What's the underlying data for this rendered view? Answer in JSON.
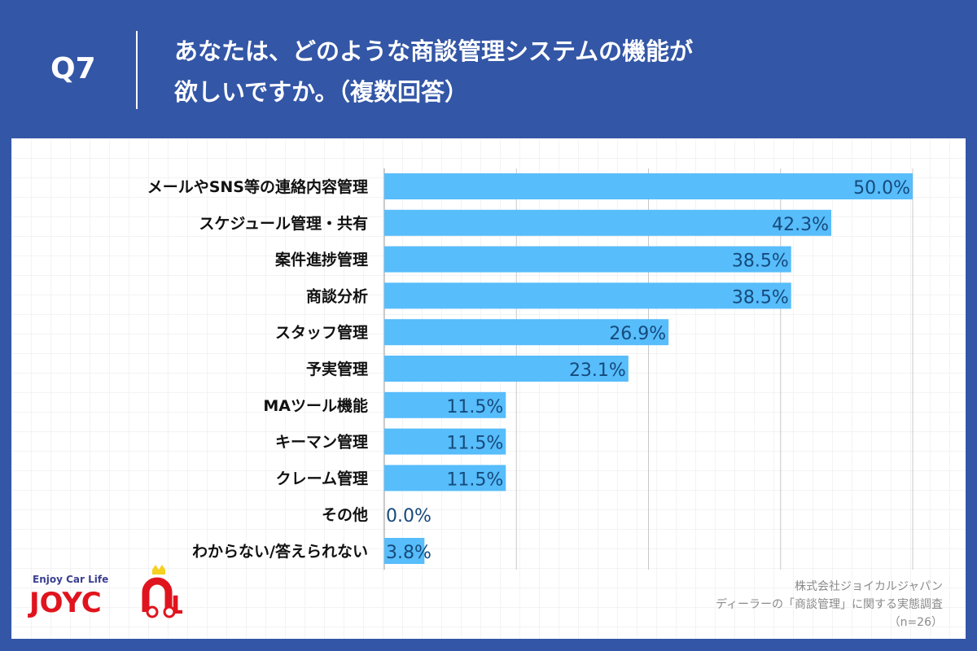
{
  "header": {
    "question_no": "Q7",
    "title_line1": "あなたは、どのような商談管理システムの機能が",
    "title_line2": "欲しいですか。（複数回答）"
  },
  "chart_data": {
    "type": "bar",
    "orientation": "horizontal",
    "categories": [
      "メールやSNS等の連絡内容管理",
      "スケジュール管理・共有",
      "案件進捗管理",
      "商談分析",
      "スタッフ管理",
      "予実管理",
      "MAツール機能",
      "キーマン管理",
      "クレーム管理",
      "その他",
      "わからない/答えられない"
    ],
    "values": [
      50.0,
      42.3,
      38.5,
      38.5,
      26.9,
      23.1,
      11.5,
      11.5,
      11.5,
      0.0,
      3.8
    ],
    "value_labels": [
      "50.0%",
      "42.3%",
      "38.5%",
      "38.5%",
      "26.9%",
      "23.1%",
      "11.5%",
      "11.5%",
      "11.5%",
      "0.0%",
      "3.8%"
    ],
    "xlim": [
      0,
      50
    ],
    "grid": true,
    "bar_color": "#57bdfb",
    "label_color": "#164a7c"
  },
  "logo": {
    "tagline": "Enjoy Car Life",
    "name": "JOYCAL"
  },
  "footer": {
    "company": "株式会社ジョイカルジャパン",
    "survey": "ディーラーの「商談管理」に関する実態調査",
    "n": "（n=26）"
  },
  "colors": {
    "background": "#3356a6"
  }
}
